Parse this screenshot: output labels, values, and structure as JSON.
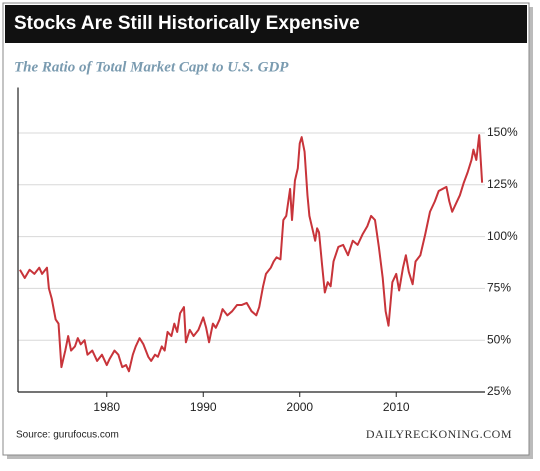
{
  "chart_data": {
    "type": "line",
    "title": "Stocks Are Still Historically Expensive",
    "subtitle": "The Ratio of Total Market Capt to U.S. GDP",
    "source": "Source: gurufocus.com",
    "brand": "DAILYRECKONING.COM",
    "color": "#c8343a",
    "grid": true,
    "x": [
      1971.0,
      1971.5,
      1972.0,
      1972.5,
      1973.0,
      1973.3,
      1973.8,
      1974.0,
      1974.3,
      1974.7,
      1975.0,
      1975.3,
      1975.7,
      1976.0,
      1976.3,
      1976.7,
      1977.0,
      1977.3,
      1977.7,
      1978.0,
      1978.5,
      1979.0,
      1979.5,
      1980.0,
      1980.3,
      1980.8,
      1981.2,
      1981.6,
      1982.0,
      1982.3,
      1982.7,
      1983.0,
      1983.4,
      1983.8,
      1984.3,
      1984.6,
      1985.0,
      1985.3,
      1985.7,
      1986.0,
      1986.3,
      1986.7,
      1987.0,
      1987.3,
      1987.6,
      1988.0,
      1988.2,
      1988.6,
      1989.0,
      1989.5,
      1990.0,
      1990.3,
      1990.6,
      1991.0,
      1991.3,
      1991.7,
      1992.0,
      1992.5,
      1993.0,
      1993.5,
      1994.0,
      1994.5,
      1995.0,
      1995.5,
      1995.8,
      1996.2,
      1996.5,
      1997.0,
      1997.3,
      1997.6,
      1998.0,
      1998.3,
      1998.6,
      1999.0,
      1999.2,
      1999.5,
      1999.8,
      2000.0,
      2000.2,
      2000.5,
      2000.8,
      2001.0,
      2001.3,
      2001.6,
      2001.8,
      2002.0,
      2002.3,
      2002.6,
      2002.9,
      2003.2,
      2003.5,
      2004.0,
      2004.5,
      2005.0,
      2005.5,
      2006.0,
      2006.5,
      2007.0,
      2007.4,
      2007.8,
      2008.2,
      2008.6,
      2008.9,
      2009.2,
      2009.6,
      2010.0,
      2010.3,
      2010.7,
      2011.0,
      2011.3,
      2011.7,
      2012.0,
      2012.5,
      2013.0,
      2013.5,
      2014.0,
      2014.4,
      2014.8,
      2015.2,
      2015.5,
      2015.8,
      2016.2,
      2016.6,
      2017.0,
      2017.4,
      2017.8,
      2018.0,
      2018.3,
      2018.6,
      2018.9
    ],
    "values": [
      84,
      80,
      84,
      82,
      85,
      82,
      85,
      75,
      70,
      60,
      58,
      37,
      45,
      52,
      45,
      47,
      51,
      48,
      50,
      43,
      45,
      40,
      43,
      38,
      41,
      45,
      43,
      37,
      38,
      35,
      43,
      47,
      51,
      48,
      42,
      40,
      43,
      42,
      47,
      45,
      54,
      52,
      58,
      54,
      63,
      66,
      49,
      55,
      52,
      55,
      61,
      56,
      49,
      58,
      56,
      60,
      65,
      62,
      64,
      67,
      67,
      68,
      64,
      62,
      66,
      76,
      82,
      85,
      88,
      90,
      89,
      108,
      110,
      123,
      108,
      127,
      133,
      145,
      148,
      141,
      120,
      110,
      104,
      98,
      104,
      102,
      87,
      73,
      78,
      76,
      88,
      95,
      96,
      91,
      98,
      96,
      101,
      105,
      110,
      108,
      95,
      80,
      64,
      57,
      78,
      82,
      74,
      85,
      91,
      83,
      77,
      88,
      91,
      101,
      112,
      117,
      122,
      123,
      124,
      117,
      112,
      116,
      120,
      126,
      131,
      137,
      142,
      137,
      149,
      126
    ],
    "xlim": [
      1970.8,
      2019.2
    ],
    "ylim": [
      25,
      170
    ],
    "xticks": [
      1980,
      1990,
      2000,
      2010
    ],
    "yticks": [
      {
        "value": 25,
        "label": "25%"
      },
      {
        "value": 50,
        "label": "50%"
      },
      {
        "value": 75,
        "label": "75%"
      },
      {
        "value": 100,
        "label": "100%"
      },
      {
        "value": 125,
        "label": "125%"
      },
      {
        "value": 150,
        "label": "150%"
      }
    ]
  }
}
